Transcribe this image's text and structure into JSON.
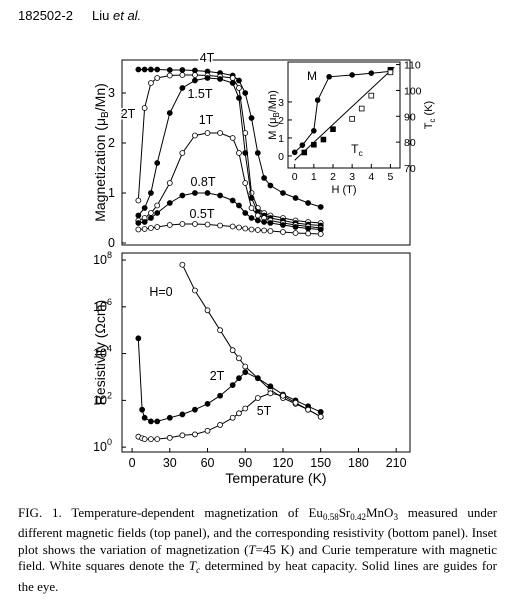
{
  "header": {
    "page": "182502-2",
    "author": "Liu",
    "etal": "et al."
  },
  "chart_data": [
    {
      "type": "line",
      "ylabel": [
        "Magnetization (μ",
        "B",
        "/Mn)"
      ],
      "x": [
        5,
        10,
        15,
        20,
        30,
        40,
        50,
        60,
        70,
        80,
        85,
        90,
        95,
        100,
        105,
        110,
        120,
        130,
        140,
        150
      ],
      "xlim": [
        -8,
        221
      ],
      "ylim": [
        -0.04,
        3.66
      ],
      "yticks": [
        0,
        1,
        2,
        3
      ],
      "series": [
        {
          "name": "4T",
          "color": "#000",
          "marker": "filled",
          "line": true,
          "values": [
            3.47,
            3.47,
            3.47,
            3.47,
            3.46,
            3.46,
            3.45,
            3.43,
            3.4,
            3.35,
            3.25,
            3.0,
            2.5,
            1.8,
            1.3,
            1.15,
            1.0,
            0.9,
            0.8,
            0.72
          ]
        },
        {
          "name": "2T",
          "color": "#000",
          "marker": "open",
          "line": true,
          "values": [
            0.85,
            2.7,
            3.2,
            3.3,
            3.35,
            3.36,
            3.36,
            3.35,
            3.33,
            3.3,
            3.1,
            2.2,
            1.0,
            0.7,
            0.6,
            0.55,
            0.5,
            0.45,
            0.42,
            0.4
          ]
        },
        {
          "name": "1.5T",
          "color": "#000",
          "marker": "filled",
          "line": true,
          "values": [
            0.55,
            0.7,
            1.0,
            1.6,
            2.6,
            3.1,
            3.25,
            3.3,
            3.28,
            3.2,
            2.9,
            1.8,
            0.9,
            0.62,
            0.55,
            0.5,
            0.45,
            0.4,
            0.37,
            0.35
          ]
        },
        {
          "name": "1T",
          "color": "#000",
          "marker": "open",
          "line": true,
          "values": [
            0.45,
            0.5,
            0.6,
            0.75,
            1.2,
            1.8,
            2.15,
            2.2,
            2.2,
            2.1,
            1.8,
            1.2,
            0.7,
            0.55,
            0.5,
            0.45,
            0.4,
            0.36,
            0.33,
            0.3
          ]
        },
        {
          "name": "0.8T",
          "color": "#000",
          "marker": "filled",
          "line": true,
          "values": [
            0.4,
            0.42,
            0.5,
            0.6,
            0.8,
            0.95,
            1.0,
            1.0,
            0.95,
            0.85,
            0.75,
            0.6,
            0.5,
            0.45,
            0.42,
            0.4,
            0.36,
            0.32,
            0.29,
            0.27
          ]
        },
        {
          "name": "0.5T",
          "color": "#000",
          "marker": "open",
          "line": true,
          "values": [
            0.27,
            0.28,
            0.3,
            0.32,
            0.36,
            0.38,
            0.38,
            0.37,
            0.35,
            0.33,
            0.31,
            0.29,
            0.27,
            0.26,
            0.25,
            0.24,
            0.22,
            0.2,
            0.19,
            0.18
          ]
        }
      ]
    },
    {
      "type": "line",
      "ylabel": [
        "Resistivity (Ωcm)"
      ],
      "xlabel": "Temperature (K)",
      "ylog": true,
      "x": [
        5,
        8,
        10,
        15,
        20,
        30,
        40,
        50,
        60,
        70,
        80,
        85,
        90,
        100,
        110,
        120,
        130,
        140,
        150
      ],
      "xlim": [
        -8,
        221
      ],
      "xticks": [
        0,
        30,
        60,
        90,
        120,
        150,
        180,
        210
      ],
      "ylim": [
        0.62,
        200000000
      ],
      "yticks": [
        {
          "value": 1,
          "label": "10",
          "exp": "0"
        },
        {
          "value": 100,
          "label": "10",
          "exp": "2"
        },
        {
          "value": 10000,
          "label": "10",
          "exp": "4"
        },
        {
          "value": 1000000,
          "label": "10",
          "exp": "6"
        },
        {
          "value": 100000000,
          "label": "10",
          "exp": "8"
        }
      ],
      "series": [
        {
          "name": "H=0",
          "color": "#000",
          "marker": "open",
          "line": true,
          "values": [
            null,
            null,
            null,
            null,
            null,
            null,
            63000000,
            5000000,
            710000,
            100000,
            14000,
            6300,
            2800,
            890,
            280,
            126,
            71,
            40,
            20
          ]
        },
        {
          "name": "2T",
          "color": "#000",
          "marker": "filled",
          "line": true,
          "values": [
            45000,
            40,
            18,
            12.6,
            12.6,
            18,
            25,
            40,
            71,
            158,
            450,
            890,
            1600,
            890,
            400,
            178,
            100,
            56,
            32
          ]
        },
        {
          "name": "5T",
          "color": "#000",
          "marker": "open",
          "line": true,
          "values": [
            2.8,
            2.4,
            2.2,
            2.2,
            2.2,
            2.5,
            3.2,
            3.5,
            5.0,
            8.9,
            18,
            28,
            45,
            126,
            200,
            158,
            79,
            40,
            20
          ]
        }
      ]
    },
    {
      "type": "line",
      "xlabel": "H (T)",
      "ylabel": [
        "M (μ",
        "B",
        "/Mn)"
      ],
      "y2label": [
        "T",
        "c",
        " (K)"
      ],
      "annotations": [
        [
          "M"
        ],
        [
          "T",
          "c"
        ]
      ],
      "xlim": [
        -0.35,
        5.5
      ],
      "xticks": [
        0,
        1,
        2,
        3,
        4,
        5
      ],
      "ylim": [
        -0.67,
        5.22
      ],
      "yticks": [
        0,
        1,
        2,
        3
      ],
      "y2lim": [
        70,
        111
      ],
      "y2ticks": [
        70,
        80,
        90,
        100,
        110
      ],
      "series": [
        {
          "color": "#000",
          "marker": "filled",
          "line": true,
          "x": [
            0,
            0.4,
            1,
            1.2,
            1.8,
            3,
            4,
            5
          ],
          "values": [
            0.2,
            0.6,
            1.4,
            3.1,
            4.4,
            4.5,
            4.6,
            4.7
          ]
        },
        {
          "color": "#000",
          "marker": "none",
          "line": true,
          "axis": "y2",
          "x": [
            0,
            5.2
          ],
          "values": [
            73,
            109
          ]
        },
        {
          "color": "#000",
          "marker": "filled-square",
          "line": false,
          "axis": "y2",
          "x": [
            0.5,
            1,
            1.5,
            2,
            5
          ],
          "values": [
            76,
            79,
            81,
            85,
            108
          ]
        },
        {
          "color": "#000",
          "marker": "open-square",
          "line": false,
          "axis": "y2",
          "x": [
            3,
            3.5,
            4,
            5
          ],
          "values": [
            89,
            93,
            98,
            107
          ]
        }
      ]
    }
  ],
  "caption": [
    {
      "text": "FIG. 1. Temperature-dependent magnetization of Eu"
    },
    {
      "text": "0.58",
      "style": "sub"
    },
    {
      "text": "Sr"
    },
    {
      "text": "0.42",
      "style": "sub"
    },
    {
      "text": "MnO"
    },
    {
      "text": "3",
      "style": "sub"
    },
    {
      "text": " measured under different magnetic fields (top panel), and the corresponding resistivity (bottom panel). Inset plot shows the variation of magnetization ("
    },
    {
      "text": "T",
      "style": "italic"
    },
    {
      "text": "=45 K) and Curie temperature with magnetic field. White squares denote the "
    },
    {
      "text": "T",
      "style": "italic"
    },
    {
      "text": "c",
      "style": "italic-sub"
    },
    {
      "text": " determined by heat capacity. Solid lines are guides for the eye."
    }
  ]
}
